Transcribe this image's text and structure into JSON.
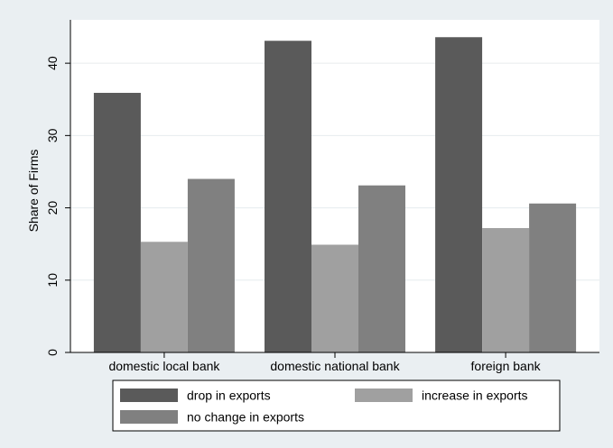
{
  "chart_data": {
    "type": "bar",
    "ylabel": "Share of Firms",
    "ylim": [
      0,
      46
    ],
    "yticks": [
      0,
      10,
      20,
      30,
      40
    ],
    "grid": true,
    "legend_position": "bottom",
    "categories": [
      "domestic local bank",
      "domestic national bank",
      "foreign bank"
    ],
    "series": [
      {
        "name": "drop in exports",
        "color": "#5a5a5a",
        "values": [
          35.9,
          43.1,
          43.6
        ]
      },
      {
        "name": "increase in exports",
        "color": "#a0a0a0",
        "values": [
          15.3,
          14.9,
          17.2
        ]
      },
      {
        "name": "no change in exports",
        "color": "#808080",
        "values": [
          24.0,
          23.1,
          20.6
        ]
      }
    ]
  }
}
